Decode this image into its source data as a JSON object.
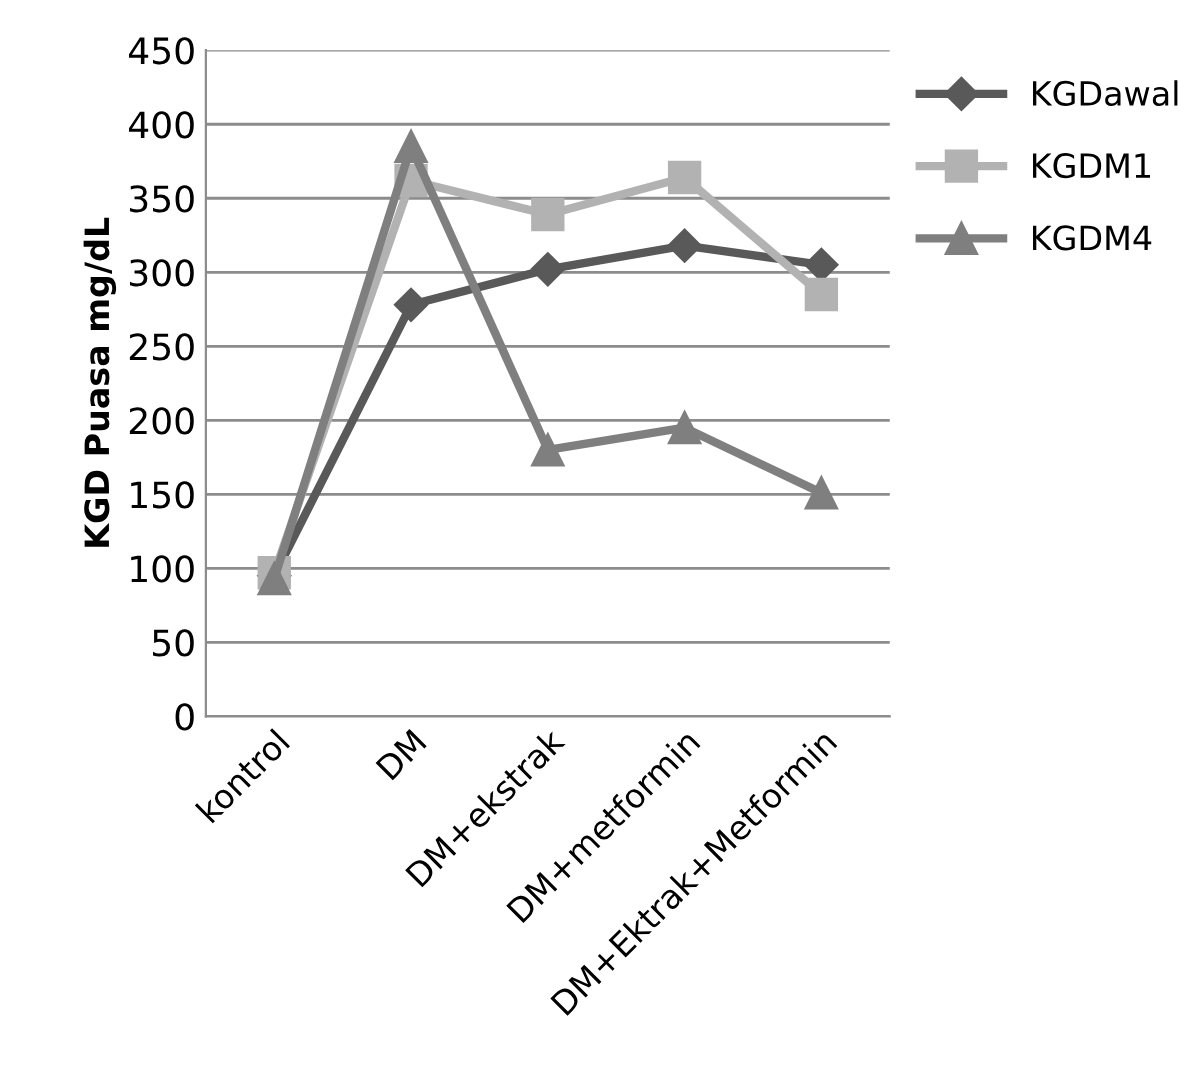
{
  "chart_data": {
    "type": "line",
    "ylabel": "KGD Puasa mg/dL",
    "categories": [
      "kontrol",
      "DM",
      "DM+ekstrak",
      "DM+metformin",
      "DM+Ektrak+Metformin"
    ],
    "series": [
      {
        "name": "KGDawal",
        "color": "#595959",
        "marker": "diamond",
        "values": [
          95,
          278,
          302,
          318,
          305
        ]
      },
      {
        "name": "KGDM1",
        "color": "#b2b2b2",
        "marker": "square",
        "values": [
          97,
          362,
          339,
          364,
          285
        ]
      },
      {
        "name": "KGDM4",
        "color": "#7f7f7f",
        "marker": "triangle",
        "values": [
          93,
          385,
          180,
          195,
          151
        ]
      }
    ],
    "ylim": [
      0,
      450
    ],
    "yticks": [
      0,
      50,
      100,
      150,
      200,
      250,
      300,
      350,
      400,
      450
    ],
    "grid": "y",
    "legend": "top right",
    "line_style": "solid"
  }
}
